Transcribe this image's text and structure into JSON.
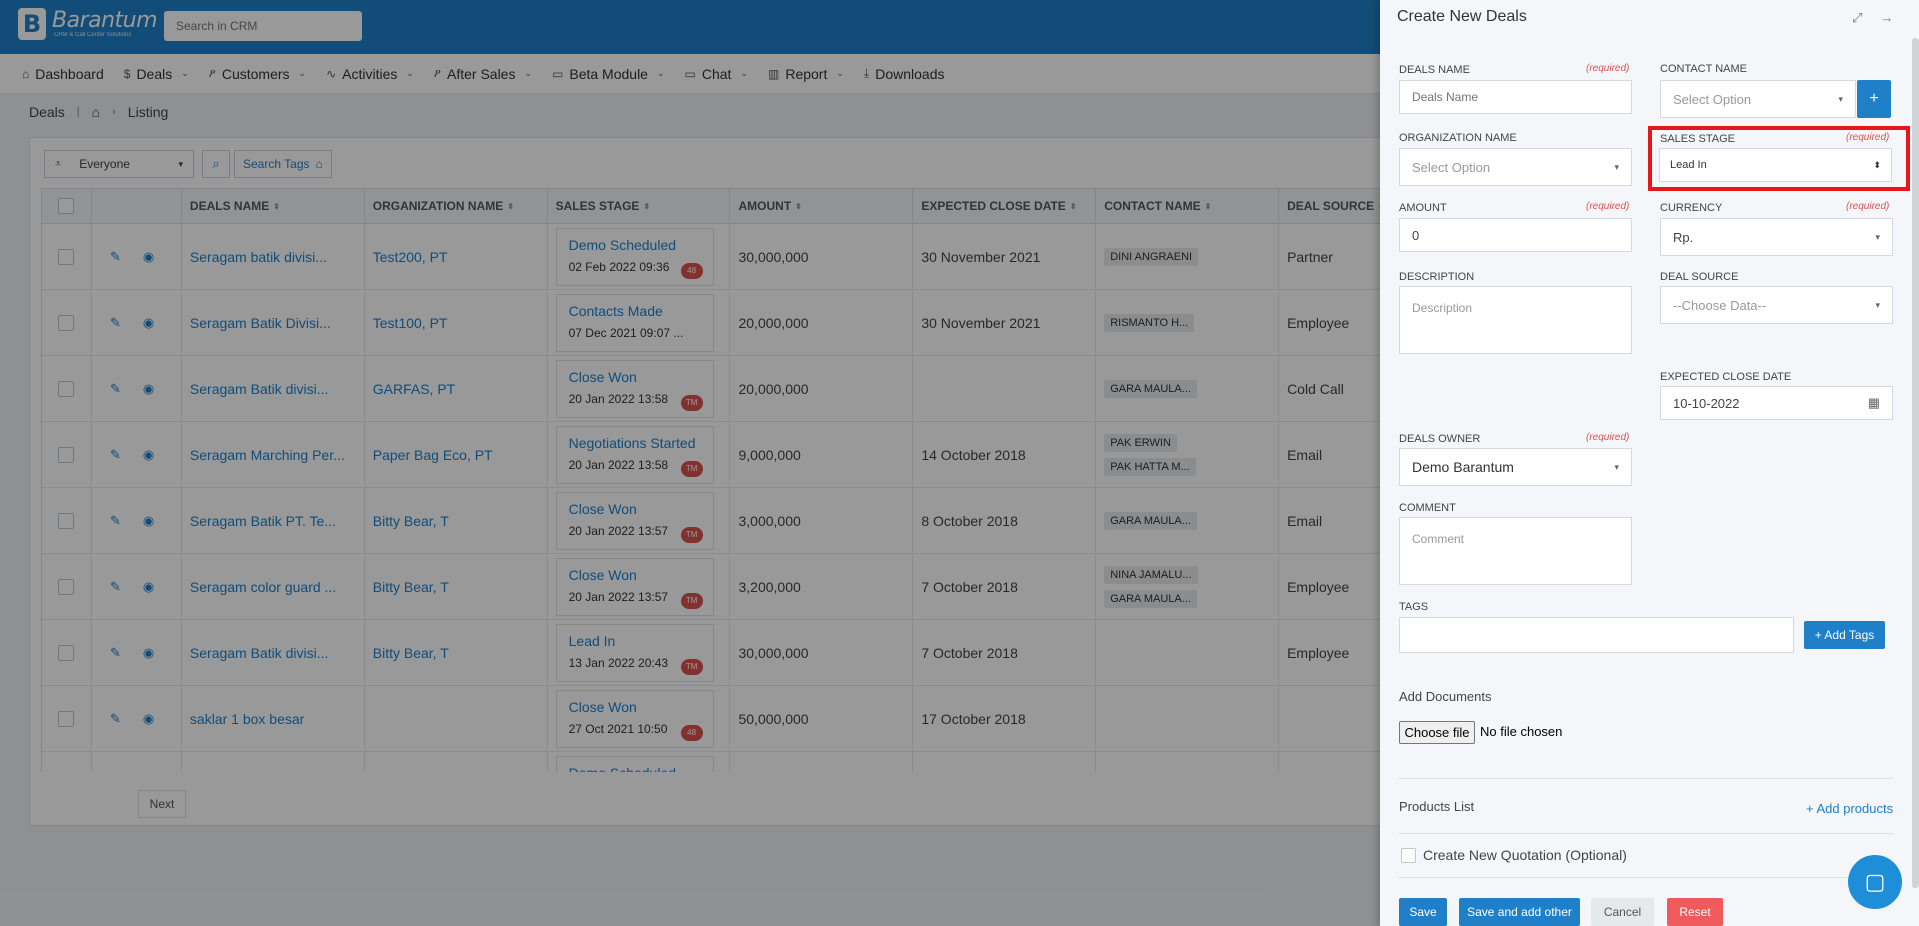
{
  "app": {
    "logo_name": "Barantum",
    "logo_tagline": "CRM & Call Center Solutions",
    "search_placeholder": "Search in CRM"
  },
  "nav": [
    {
      "label": "Dashboard",
      "icon": "home-icon",
      "dropdown": false
    },
    {
      "label": "Deals",
      "icon": "dollar-icon",
      "dropdown": true
    },
    {
      "label": "Customers",
      "icon": "users-icon",
      "dropdown": true
    },
    {
      "label": "Activities",
      "icon": "activity-icon",
      "dropdown": true
    },
    {
      "label": "After Sales",
      "icon": "users-icon",
      "dropdown": true
    },
    {
      "label": "Beta Module",
      "icon": "folder-icon",
      "dropdown": true
    },
    {
      "label": "Chat",
      "icon": "folder-icon",
      "dropdown": true
    },
    {
      "label": "Report",
      "icon": "chart-icon",
      "dropdown": true
    },
    {
      "label": "Downloads",
      "icon": "download-icon",
      "dropdown": false
    }
  ],
  "breadcrumb": {
    "module": "Deals",
    "page": "Listing"
  },
  "filter": {
    "owner": "Everyone",
    "search_tags": "Search Tags"
  },
  "table": {
    "headers": [
      "DEALS NAME",
      "ORGANIZATION NAME",
      "SALES STAGE",
      "AMOUNT",
      "EXPECTED CLOSE DATE",
      "CONTACT NAME",
      "DEAL SOURCE"
    ],
    "rows": [
      {
        "name": "Seragam batik divisi...",
        "org": "Test200, PT",
        "stage": "Demo Scheduled",
        "stage_date": "02 Feb 2022 09:36",
        "badge": "48",
        "amount": "30,000,000",
        "close": "30 November 2021",
        "contacts": [
          "DINI ANGRAENI"
        ],
        "source": "Partner"
      },
      {
        "name": "Seragam Batik Divisi...",
        "org": "Test100, PT",
        "stage": "Contacts Made",
        "stage_date": "07 Dec 2021 09:07 ...",
        "badge": "",
        "amount": "20,000,000",
        "close": "30 November 2021",
        "contacts": [
          "RISMANTO H..."
        ],
        "source": "Employee"
      },
      {
        "name": "Seragam Batik divisi...",
        "org": "GARFAS, PT",
        "stage": "Close Won",
        "stage_date": "20 Jan 2022 13:58",
        "badge": "TM",
        "amount": "20,000,000",
        "close": "",
        "contacts": [
          "GARA MAULA..."
        ],
        "source": "Cold Call"
      },
      {
        "name": "Seragam Marching Per...",
        "org": "Paper Bag Eco, PT",
        "stage": "Negotiations Started",
        "stage_date": "20 Jan 2022 13:58",
        "badge": "TM",
        "amount": "9,000,000",
        "close": "14 October 2018",
        "contacts": [
          "PAK ERWIN",
          "PAK HATTA M..."
        ],
        "source": "Email"
      },
      {
        "name": "Seragam Batik PT. Te...",
        "org": "Bitty Bear, T",
        "stage": "Close Won",
        "stage_date": "20 Jan 2022 13:57",
        "badge": "TM",
        "amount": "3,000,000",
        "close": "8 October 2018",
        "contacts": [
          "GARA MAULA..."
        ],
        "source": "Email"
      },
      {
        "name": "Seragam color guard ...",
        "org": "Bitty Bear, T",
        "stage": "Close Won",
        "stage_date": "20 Jan 2022 13:57",
        "badge": "TM",
        "amount": "3,200,000",
        "close": "7 October 2018",
        "contacts": [
          "NINA JAMALU...",
          "GARA MAULA..."
        ],
        "source": "Employee"
      },
      {
        "name": "Seragam Batik divisi...",
        "org": "Bitty Bear, T",
        "stage": "Lead In",
        "stage_date": "13 Jan 2022 20:43",
        "badge": "TM",
        "amount": "30,000,000",
        "close": "7 October 2018",
        "contacts": [],
        "source": "Employee"
      },
      {
        "name": "saklar 1 box besar",
        "org": "",
        "stage": "Close Won",
        "stage_date": "27 Oct 2021 10:50",
        "badge": "48",
        "amount": "50,000,000",
        "close": "17 October 2018",
        "contacts": [],
        "source": ""
      },
      {
        "name": "",
        "org": "",
        "stage": "Demo Scheduled",
        "stage_date": "",
        "badge": "",
        "amount": "",
        "close": "",
        "contacts": [],
        "source": ""
      }
    ],
    "pager_next": "Next"
  },
  "panel": {
    "title": "Create New Deals",
    "required_text": "(required)",
    "fields": {
      "deals_name": {
        "label": "DEALS NAME",
        "placeholder": "Deals Name"
      },
      "contact_name": {
        "label": "CONTACT NAME",
        "value": "Select Option"
      },
      "organization_name": {
        "label": "ORGANIZATION NAME",
        "value": "Select Option"
      },
      "sales_stage": {
        "label": "SALES STAGE",
        "value": "Lead In"
      },
      "amount": {
        "label": "AMOUNT",
        "value": "0"
      },
      "currency": {
        "label": "CURRENCY",
        "value": "Rp."
      },
      "description": {
        "label": "DESCRIPTION",
        "placeholder": "Description"
      },
      "deal_source": {
        "label": "DEAL SOURCE",
        "value": "--Choose Data--"
      },
      "expected_close_date": {
        "label": "EXPECTED CLOSE DATE",
        "value": "10-10-2022"
      },
      "deals_owner": {
        "label": "DEALS OWNER",
        "value": "Demo Barantum"
      },
      "comment": {
        "label": "COMMENT",
        "placeholder": "Comment"
      },
      "tags": {
        "label": "TAGS",
        "button": "+ Add Tags"
      }
    },
    "documents": {
      "title": "Add Documents",
      "choose": "Choose file",
      "status": "No file chosen"
    },
    "products": {
      "title": "Products List",
      "add": "+ Add products"
    },
    "quotation": "Create New Quotation (Optional)",
    "buttons": {
      "save": "Save",
      "save_add": "Save and add other",
      "cancel": "Cancel",
      "reset": "Reset"
    }
  },
  "colors": {
    "primary": "#1f7fc8",
    "danger": "#d9534f",
    "highlight": "#e6161d"
  }
}
